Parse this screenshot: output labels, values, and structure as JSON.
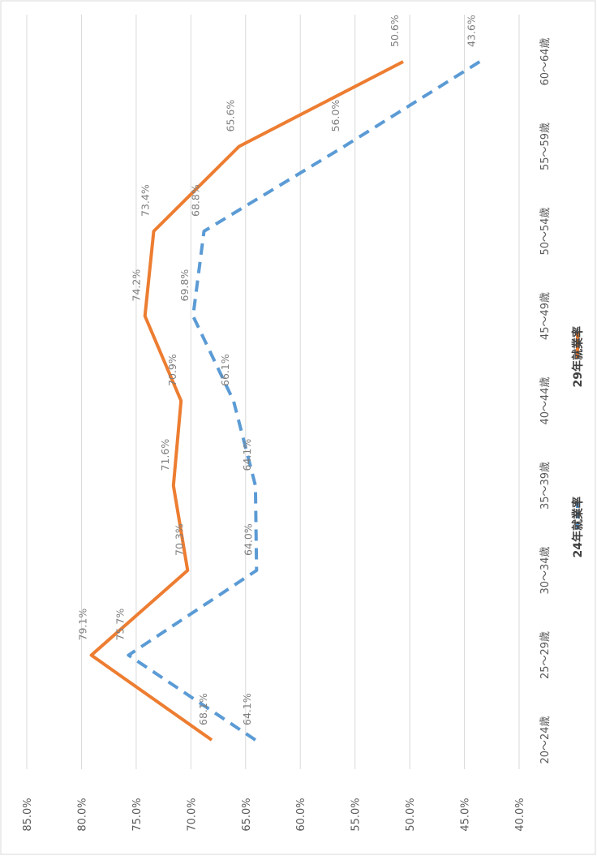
{
  "chart_data": {
    "type": "line",
    "orientation": "rotated-90-clockwise",
    "categories": [
      "20～24歳",
      "25～29歳",
      "30～34歳",
      "35～39歳",
      "40～44歳",
      "45～49歳",
      "50～54歳",
      "55～59歳",
      "60～64歳"
    ],
    "series": [
      {
        "name": "24年就業率",
        "values": [
          64.1,
          75.7,
          64.0,
          64.1,
          66.1,
          69.8,
          68.8,
          56.0,
          43.6
        ],
        "labels": [
          "64.1%",
          "75.7%",
          "64.0%",
          "64.1%",
          "66.1%",
          "69.8%",
          "68.8%",
          "56.0%",
          "43.6%"
        ],
        "color": "#5b9bd5",
        "line_style": "dashed"
      },
      {
        "name": "29年就業率",
        "values": [
          68.1,
          79.1,
          70.3,
          71.6,
          70.9,
          74.2,
          73.4,
          65.6,
          50.6
        ],
        "labels": [
          "68.1%",
          "79.1%",
          "70.3%",
          "71.6%",
          "70.9%",
          "74.2%",
          "73.4%",
          "65.6%",
          "50.6%"
        ],
        "color": "#ed7d31",
        "line_style": "solid"
      }
    ],
    "ylim": [
      40,
      85
    ],
    "y_ticks": [
      "85.0%",
      "80.0%",
      "75.0%",
      "70.0%",
      "65.0%",
      "60.0%",
      "55.0%",
      "50.0%",
      "45.0%",
      "40.0%"
    ],
    "grid": true,
    "legend_position": "bottom"
  }
}
